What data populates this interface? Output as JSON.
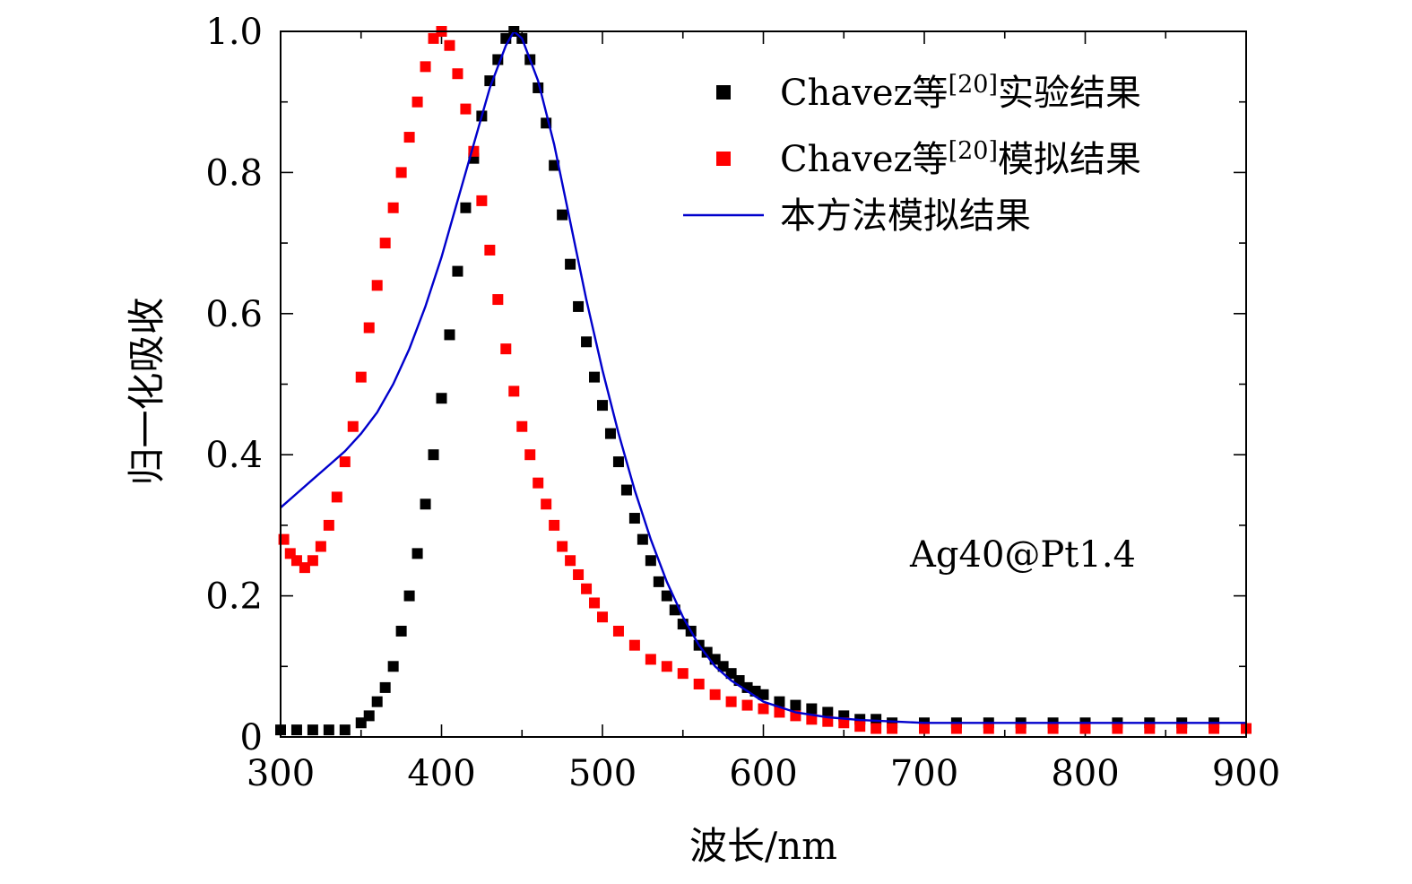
{
  "chart_data": {
    "type": "scatter",
    "xlabel": "波长/nm",
    "ylabel": "归一化吸收",
    "xlim": [
      300,
      900
    ],
    "ylim": [
      0,
      1.0
    ],
    "x_ticks": [
      "300",
      "400",
      "500",
      "600",
      "700",
      "800",
      "900"
    ],
    "y_ticks": [
      "0",
      "0.2",
      "0.4",
      "0.6",
      "0.8",
      "1.0"
    ],
    "annotation": "Ag40@Pt1.4",
    "legend_position": "top-right",
    "series": [
      {
        "name": "Chavez等[20]实验结果",
        "legend_main": "Chavez等",
        "legend_sup": "[20]",
        "legend_tail": "实验结果",
        "marker": "square",
        "color": "#000000",
        "points": [
          [
            300,
            0.01
          ],
          [
            310,
            0.01
          ],
          [
            320,
            0.01
          ],
          [
            330,
            0.01
          ],
          [
            340,
            0.01
          ],
          [
            350,
            0.02
          ],
          [
            355,
            0.03
          ],
          [
            360,
            0.05
          ],
          [
            365,
            0.07
          ],
          [
            370,
            0.1
          ],
          [
            375,
            0.15
          ],
          [
            380,
            0.2
          ],
          [
            385,
            0.26
          ],
          [
            390,
            0.33
          ],
          [
            395,
            0.4
          ],
          [
            400,
            0.48
          ],
          [
            405,
            0.57
          ],
          [
            410,
            0.66
          ],
          [
            415,
            0.75
          ],
          [
            420,
            0.82
          ],
          [
            425,
            0.88
          ],
          [
            430,
            0.93
          ],
          [
            435,
            0.96
          ],
          [
            440,
            0.99
          ],
          [
            445,
            1.0
          ],
          [
            450,
            0.99
          ],
          [
            455,
            0.96
          ],
          [
            460,
            0.92
          ],
          [
            465,
            0.87
          ],
          [
            470,
            0.81
          ],
          [
            475,
            0.74
          ],
          [
            480,
            0.67
          ],
          [
            485,
            0.61
          ],
          [
            490,
            0.56
          ],
          [
            495,
            0.51
          ],
          [
            500,
            0.47
          ],
          [
            505,
            0.43
          ],
          [
            510,
            0.39
          ],
          [
            515,
            0.35
          ],
          [
            520,
            0.31
          ],
          [
            525,
            0.28
          ],
          [
            530,
            0.25
          ],
          [
            535,
            0.22
          ],
          [
            540,
            0.2
          ],
          [
            545,
            0.18
          ],
          [
            550,
            0.16
          ],
          [
            555,
            0.15
          ],
          [
            560,
            0.13
          ],
          [
            565,
            0.12
          ],
          [
            570,
            0.11
          ],
          [
            575,
            0.1
          ],
          [
            580,
            0.09
          ],
          [
            585,
            0.08
          ],
          [
            590,
            0.07
          ],
          [
            595,
            0.065
          ],
          [
            600,
            0.06
          ],
          [
            610,
            0.05
          ],
          [
            620,
            0.045
          ],
          [
            630,
            0.04
          ],
          [
            640,
            0.035
          ],
          [
            650,
            0.03
          ],
          [
            660,
            0.025
          ],
          [
            670,
            0.025
          ],
          [
            680,
            0.02
          ],
          [
            700,
            0.02
          ],
          [
            720,
            0.02
          ],
          [
            740,
            0.02
          ],
          [
            760,
            0.02
          ],
          [
            780,
            0.02
          ],
          [
            800,
            0.02
          ],
          [
            820,
            0.02
          ],
          [
            840,
            0.02
          ],
          [
            860,
            0.02
          ],
          [
            880,
            0.02
          ]
        ]
      },
      {
        "name": "Chavez等[20]模拟结果",
        "legend_main": "Chavez等",
        "legend_sup": "[20]",
        "legend_tail": "模拟结果",
        "marker": "square",
        "color": "#ff0000",
        "points": [
          [
            302,
            0.28
          ],
          [
            306,
            0.26
          ],
          [
            310,
            0.25
          ],
          [
            315,
            0.24
          ],
          [
            320,
            0.25
          ],
          [
            325,
            0.27
          ],
          [
            330,
            0.3
          ],
          [
            335,
            0.34
          ],
          [
            340,
            0.39
          ],
          [
            345,
            0.44
          ],
          [
            350,
            0.51
          ],
          [
            355,
            0.58
          ],
          [
            360,
            0.64
          ],
          [
            365,
            0.7
          ],
          [
            370,
            0.75
          ],
          [
            375,
            0.8
          ],
          [
            380,
            0.85
          ],
          [
            385,
            0.9
          ],
          [
            390,
            0.95
          ],
          [
            395,
            0.99
          ],
          [
            400,
            1.0
          ],
          [
            405,
            0.98
          ],
          [
            410,
            0.94
          ],
          [
            415,
            0.89
          ],
          [
            420,
            0.83
          ],
          [
            425,
            0.76
          ],
          [
            430,
            0.69
          ],
          [
            435,
            0.62
          ],
          [
            440,
            0.55
          ],
          [
            445,
            0.49
          ],
          [
            450,
            0.44
          ],
          [
            455,
            0.4
          ],
          [
            460,
            0.36
          ],
          [
            465,
            0.33
          ],
          [
            470,
            0.3
          ],
          [
            475,
            0.27
          ],
          [
            480,
            0.25
          ],
          [
            485,
            0.23
          ],
          [
            490,
            0.21
          ],
          [
            495,
            0.19
          ],
          [
            500,
            0.17
          ],
          [
            510,
            0.15
          ],
          [
            520,
            0.13
          ],
          [
            530,
            0.11
          ],
          [
            540,
            0.1
          ],
          [
            550,
            0.09
          ],
          [
            560,
            0.075
          ],
          [
            570,
            0.06
          ],
          [
            580,
            0.05
          ],
          [
            590,
            0.045
          ],
          [
            600,
            0.04
          ],
          [
            610,
            0.035
          ],
          [
            620,
            0.03
          ],
          [
            630,
            0.025
          ],
          [
            640,
            0.022
          ],
          [
            650,
            0.02
          ],
          [
            660,
            0.015
          ],
          [
            670,
            0.012
          ],
          [
            680,
            0.012
          ],
          [
            700,
            0.012
          ],
          [
            720,
            0.012
          ],
          [
            740,
            0.012
          ],
          [
            760,
            0.012
          ],
          [
            780,
            0.012
          ],
          [
            800,
            0.012
          ],
          [
            820,
            0.012
          ],
          [
            840,
            0.012
          ],
          [
            860,
            0.012
          ],
          [
            880,
            0.012
          ],
          [
            900,
            0.012
          ]
        ]
      },
      {
        "name": "本方法模拟结果",
        "legend_main": "本方法模拟结果",
        "legend_sup": "",
        "legend_tail": "",
        "marker": "line",
        "color": "#0000cc",
        "points": [
          [
            300,
            0.325
          ],
          [
            310,
            0.345
          ],
          [
            320,
            0.365
          ],
          [
            330,
            0.385
          ],
          [
            340,
            0.405
          ],
          [
            350,
            0.43
          ],
          [
            360,
            0.46
          ],
          [
            370,
            0.5
          ],
          [
            380,
            0.55
          ],
          [
            390,
            0.61
          ],
          [
            400,
            0.68
          ],
          [
            410,
            0.76
          ],
          [
            420,
            0.84
          ],
          [
            430,
            0.92
          ],
          [
            440,
            0.98
          ],
          [
            445,
            1.0
          ],
          [
            450,
            0.99
          ],
          [
            460,
            0.93
          ],
          [
            470,
            0.84
          ],
          [
            480,
            0.73
          ],
          [
            490,
            0.62
          ],
          [
            500,
            0.52
          ],
          [
            510,
            0.43
          ],
          [
            520,
            0.35
          ],
          [
            530,
            0.28
          ],
          [
            540,
            0.22
          ],
          [
            550,
            0.17
          ],
          [
            560,
            0.13
          ],
          [
            570,
            0.1
          ],
          [
            580,
            0.08
          ],
          [
            590,
            0.065
          ],
          [
            600,
            0.05
          ],
          [
            620,
            0.035
          ],
          [
            640,
            0.028
          ],
          [
            660,
            0.024
          ],
          [
            680,
            0.022
          ],
          [
            700,
            0.02
          ],
          [
            750,
            0.02
          ],
          [
            800,
            0.02
          ],
          [
            850,
            0.02
          ],
          [
            900,
            0.02
          ]
        ]
      }
    ]
  }
}
